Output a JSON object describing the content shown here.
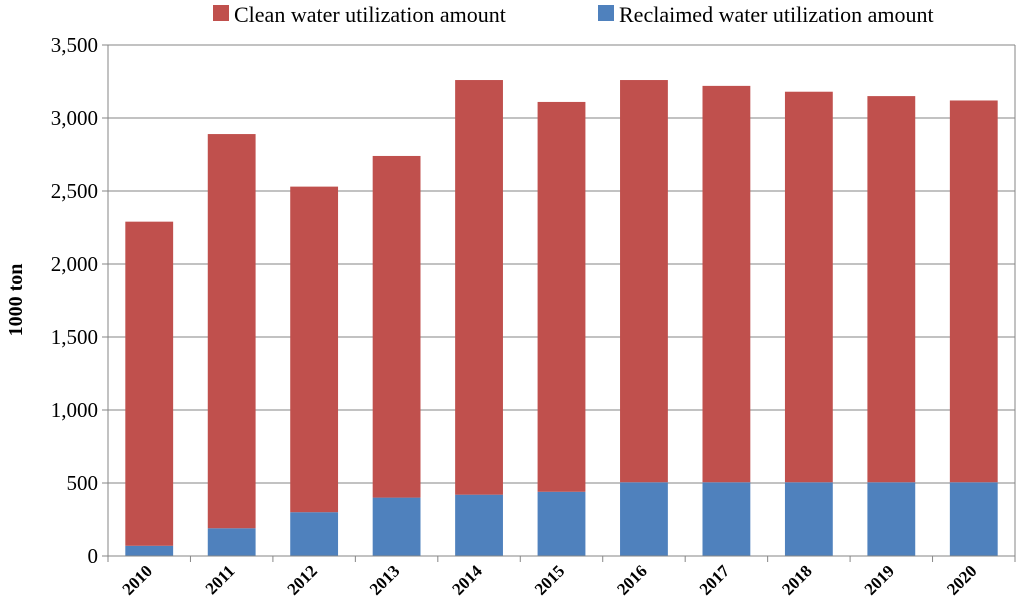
{
  "chart_data": {
    "type": "bar",
    "stacked": true,
    "title": "",
    "xlabel": "",
    "ylabel": "1000 ton",
    "ylim": [
      0,
      3500
    ],
    "yticks": [
      0,
      500,
      1000,
      1500,
      2000,
      2500,
      3000,
      3500
    ],
    "ytick_labels": [
      "0",
      "500",
      "1,000",
      "1,500",
      "2,000",
      "2,500",
      "3,000",
      "3,500"
    ],
    "grid": true,
    "legend_position": "top",
    "categories": [
      "2010",
      "2011",
      "2012",
      "2013",
      "2014",
      "2015",
      "2016",
      "2017",
      "2018",
      "2019",
      "2020"
    ],
    "series": [
      {
        "name": "Reclaimed water utilization amount",
        "color": "#4f81bd",
        "values": [
          70,
          190,
          300,
          400,
          420,
          440,
          505,
          505,
          505,
          505,
          505
        ]
      },
      {
        "name": "Clean water utilization amount",
        "color": "#c0504d",
        "values": [
          2220,
          2700,
          2230,
          2340,
          2840,
          2670,
          2755,
          2715,
          2675,
          2645,
          2615
        ]
      }
    ],
    "legend_order": [
      "Clean water utilization amount",
      "Reclaimed water utilization amount"
    ]
  }
}
